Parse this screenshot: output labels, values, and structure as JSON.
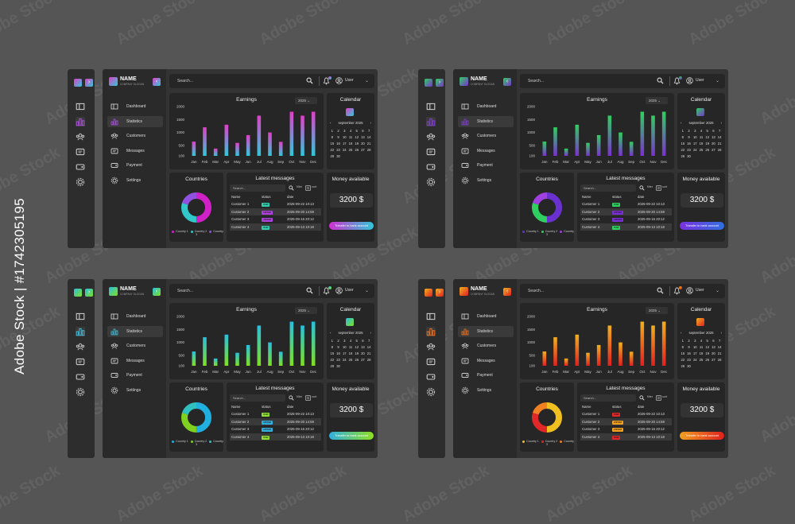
{
  "stock_id": "Adobe Stock | #1742305195",
  "watermark": "Adobe Stock",
  "brand": {
    "name": "NAME",
    "subtitle": "COMPANY SLOGAN"
  },
  "menu": [
    "Dashboard",
    "Statistics",
    "Customers",
    "Messages",
    "Payment",
    "Settings"
  ],
  "active_menu": 1,
  "search_placeholder": "Search...",
  "user_label": "User",
  "earnings": {
    "title": "Earnings",
    "year": "2025",
    "y_ticks": [
      2000,
      1500,
      1000,
      500,
      100
    ]
  },
  "calendar": {
    "title": "Calendar",
    "month": "september 2025",
    "days": [
      "1",
      "2",
      "3",
      "4",
      "5",
      "6",
      "7",
      "8",
      "9",
      "10",
      "11",
      "12",
      "13",
      "14",
      "15",
      "16",
      "17",
      "18",
      "19",
      "20",
      "21",
      "22",
      "23",
      "24",
      "25",
      "26",
      "27",
      "28",
      "29",
      "30"
    ]
  },
  "countries": {
    "title": "Countries",
    "legend": [
      "Country 1",
      "Country 2",
      "Country 3"
    ]
  },
  "messages": {
    "title": "Latest messages",
    "search_placeholder": "Search...",
    "tools": [
      "filter",
      "sort"
    ],
    "columns": [
      "Name",
      "status",
      "date"
    ],
    "rows": [
      {
        "name": "Customer 1",
        "status": "read",
        "date": "2025-09-22 10:13"
      },
      {
        "name": "Customer 2",
        "status": "unread",
        "date": "2025-09-20 14:59"
      },
      {
        "name": "Customer 3",
        "status": "unread",
        "date": "2025-09-16 20:12"
      },
      {
        "name": "Customer 4",
        "status": "read",
        "date": "2025-09-13 10:18"
      }
    ]
  },
  "money": {
    "title": "Money available",
    "amount": "3200 $",
    "button": "Transfer to bank account"
  },
  "chart_data": {
    "type": "bar",
    "title": "Earnings",
    "categories": [
      "Jan",
      "Feb",
      "Mar",
      "Apr",
      "May",
      "Jun",
      "Jul",
      "Aug",
      "Sep",
      "Oct",
      "Nov",
      "Dec"
    ],
    "series": [
      {
        "values": [
          650,
          1200,
          380,
          1300,
          600,
          900,
          1650,
          1000,
          640,
          1800,
          1650,
          1800
        ]
      }
    ],
    "ylim": [
      100,
      2000
    ],
    "grid": false,
    "legend": "none"
  },
  "themes": [
    {
      "id": "magenta-cyan",
      "bar_top": "#e040c8",
      "bar_bottom": "#30c8d8",
      "donut": [
        "#d020c8",
        "#30c8c8",
        "#9050e0"
      ],
      "badge_read": "#30d0b0",
      "badge_unread": "#b040e0",
      "accent": "#b050e0",
      "button": [
        "#d030d0",
        "#30c8d8"
      ]
    },
    {
      "id": "green-purple",
      "bar_top": "#30d060",
      "bar_bottom": "#7a30d0",
      "donut": [
        "#6a30d0",
        "#30d060",
        "#a040e0"
      ],
      "badge_read": "#30d060",
      "badge_unread": "#7a30d0",
      "accent": "#8040d0",
      "button": [
        "#7a30e0",
        "#3070e0"
      ]
    },
    {
      "id": "cyan-lime",
      "bar_top": "#28c0e0",
      "bar_bottom": "#80e020",
      "donut": [
        "#20b0e0",
        "#80d020",
        "#30c0c0"
      ],
      "badge_read": "#90e030",
      "badge_unread": "#30b0e0",
      "accent": "#40c0e0",
      "button": [
        "#30b0e0",
        "#90e020"
      ]
    },
    {
      "id": "yellow-red",
      "bar_top": "#f0b020",
      "bar_bottom": "#e02020",
      "donut": [
        "#f0c020",
        "#e02828",
        "#f08020"
      ],
      "badge_read": "#e02828",
      "badge_unread": "#f0a020",
      "accent": "#f07020",
      "button": [
        "#f0a020",
        "#e02020"
      ]
    }
  ]
}
